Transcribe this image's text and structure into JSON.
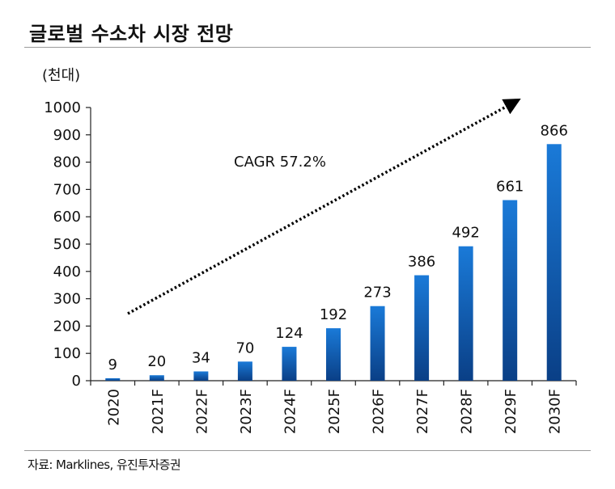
{
  "title": "글로벌 수소차 시장 전망",
  "source": "자료: Marklines, 유진투자증권",
  "chart_data": {
    "type": "bar",
    "title": "글로벌 수소차 시장 전망",
    "ylabel": "(천대)",
    "xlabel": "",
    "categories": [
      "2020",
      "2021F",
      "2022F",
      "2023F",
      "2024F",
      "2025F",
      "2026F",
      "2027F",
      "2028F",
      "2029F",
      "2030F"
    ],
    "values": [
      9,
      20,
      34,
      70,
      124,
      192,
      273,
      386,
      492,
      661,
      866
    ],
    "ylim": [
      0,
      1000
    ],
    "yticks": [
      0,
      100,
      200,
      300,
      400,
      500,
      600,
      700,
      800,
      900,
      1000
    ],
    "grid": false,
    "annotation": "CAGR 57.2%",
    "bar_color_top": "#1a7ad8",
    "bar_color_bottom": "#0a3f86"
  }
}
